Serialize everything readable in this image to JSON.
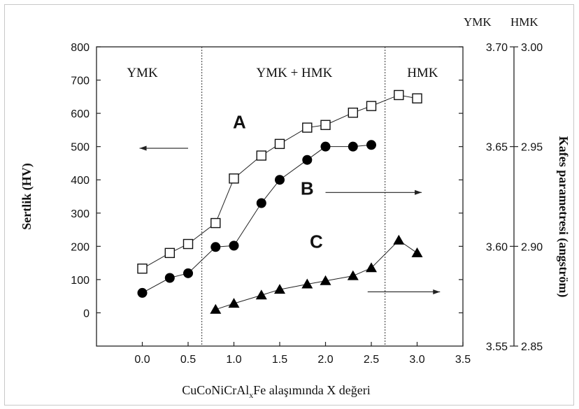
{
  "chart_data": {
    "type": "scatter",
    "xlabel": "CuCoNiCrAlxFe alaşımında X değeri",
    "xlabel_parts": {
      "main": "CuCoNiCrAl",
      "sub": "x",
      "rest": "Fe alaşımında X değeri"
    },
    "ylabel": "Sertlik (HV)",
    "y2label": "Kafes parametresi (angström)",
    "xlim": [
      -0.5,
      3.5
    ],
    "ylim": [
      -100,
      800
    ],
    "x_ticks": [
      "0.0",
      "0.5",
      "1.0",
      "1.5",
      "2.0",
      "2.5",
      "3.0",
      "3.5"
    ],
    "y_ticks": [
      "0",
      "100",
      "200",
      "300",
      "400",
      "500",
      "600",
      "700",
      "800"
    ],
    "ymk_axis": {
      "header": "YMK",
      "ticks": [
        "3.55",
        "3.60",
        "3.65",
        "3.70"
      ]
    },
    "hmk_axis": {
      "header": "HMK",
      "ticks": [
        "2.85",
        "2.90",
        "2.95",
        "3.00"
      ]
    },
    "regions": [
      {
        "label": "YMK",
        "x": 0.0
      },
      {
        "label": "YMK + HMK",
        "x": 1.66
      },
      {
        "label": "HMK",
        "x": 3.06
      }
    ],
    "boundaries": [
      0.65,
      2.65
    ],
    "series": [
      {
        "name": "A",
        "marker": "open-square",
        "x": [
          0.0,
          0.3,
          0.5,
          0.8,
          1.0,
          1.3,
          1.5,
          1.8,
          2.0,
          2.3,
          2.5,
          2.8,
          3.0
        ],
        "y": [
          133,
          180,
          207,
          270,
          404,
          473,
          508,
          557,
          565,
          602,
          622,
          655,
          645
        ]
      },
      {
        "name": "B",
        "marker": "filled-circle",
        "x": [
          0.0,
          0.3,
          0.5,
          0.8,
          1.0,
          1.3,
          1.5,
          1.8,
          2.0,
          2.3,
          2.5
        ],
        "y": [
          60,
          105,
          119,
          198,
          202,
          330,
          400,
          460,
          500,
          500,
          505
        ]
      },
      {
        "name": "C",
        "marker": "filled-triangle",
        "x": [
          0.8,
          1.0,
          1.3,
          1.5,
          1.8,
          2.0,
          2.3,
          2.5,
          2.8,
          3.0
        ],
        "y": [
          10,
          28,
          53,
          70,
          86,
          96,
          111,
          135,
          218,
          180
        ]
      }
    ],
    "annotations": [
      {
        "label": "A",
        "x": 1.06,
        "y": 555
      },
      {
        "label": "B",
        "x": 1.8,
        "y": 355
      },
      {
        "label": "C",
        "x": 1.9,
        "y": 195
      }
    ],
    "arrows": [
      {
        "x1": 0.5,
        "y1": 495,
        "x2": -0.03,
        "y2": 495,
        "direction": "left"
      },
      {
        "x1": 2.0,
        "y1": 362,
        "x2": 3.05,
        "y2": 362,
        "direction": "right"
      },
      {
        "x1": 2.46,
        "y1": 63,
        "x2": 3.25,
        "y2": 63,
        "direction": "right"
      }
    ]
  }
}
